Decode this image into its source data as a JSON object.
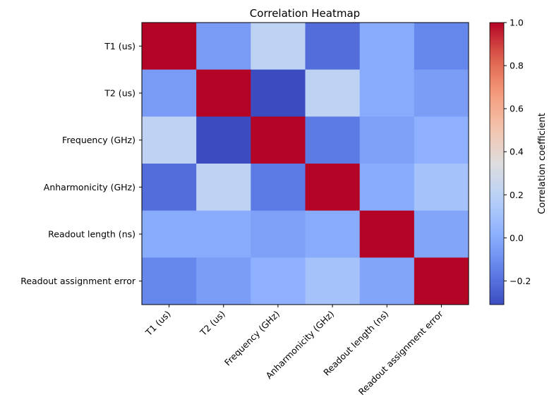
{
  "chart_data": {
    "type": "heatmap",
    "title": "Correlation Heatmap",
    "row_labels": [
      "T1 (us)",
      "T2 (us)",
      "Frequency (GHz)",
      "Anharmonicity (GHz)",
      "Readout length (ns)",
      "Readout assignment error"
    ],
    "col_labels": [
      "T1 (us)",
      "T2 (us)",
      "Frequency (GHz)",
      "Anharmonicity (GHz)",
      "Readout length (ns)",
      "Readout assignment error"
    ],
    "values": [
      [
        1.0,
        -0.06,
        0.21,
        -0.21,
        0.0,
        -0.13
      ],
      [
        -0.06,
        1.0,
        -0.31,
        0.21,
        0.0,
        -0.05
      ],
      [
        0.21,
        -0.31,
        1.0,
        -0.17,
        -0.04,
        0.02
      ],
      [
        -0.21,
        0.21,
        -0.17,
        1.0,
        0.0,
        0.11
      ],
      [
        0.0,
        0.0,
        -0.04,
        0.0,
        1.0,
        -0.02
      ],
      [
        -0.13,
        -0.05,
        0.02,
        0.11,
        -0.02,
        1.0
      ]
    ],
    "colormap": "coolwarm",
    "vmin": -0.31,
    "vmax": 1.0,
    "colorbar": {
      "label": "Correlation coefficient",
      "ticks": [
        -0.2,
        0.0,
        0.2,
        0.4,
        0.6,
        0.8,
        1.0
      ],
      "tick_labels": [
        "−0.2",
        "0.0",
        "0.2",
        "0.4",
        "0.6",
        "0.8",
        "1.0"
      ]
    },
    "x_tick_rotation": 45,
    "grid": false
  }
}
